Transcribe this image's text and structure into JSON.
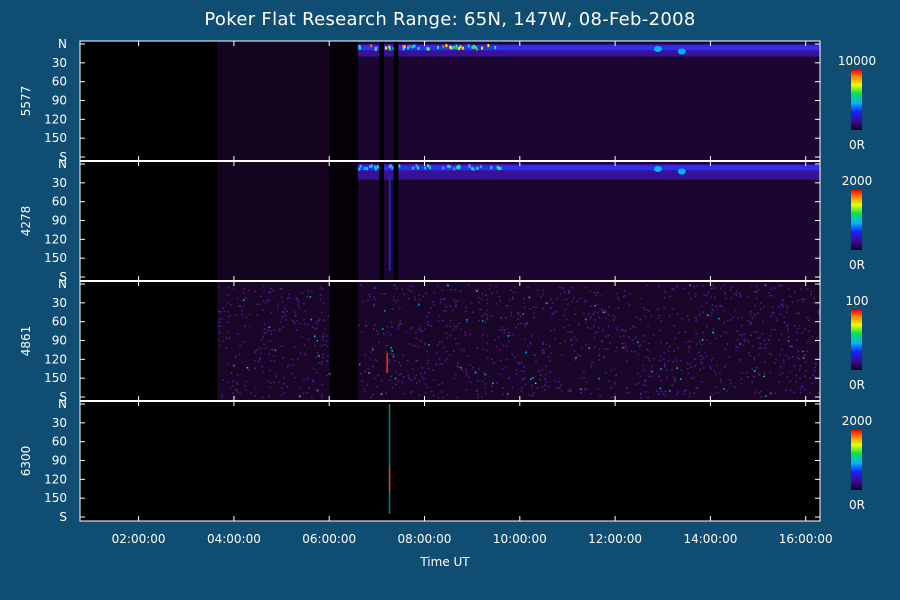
{
  "title": "Poker Flat Research Range: 65N, 147W, 08-Feb-2008",
  "xlabel": "Time UT",
  "chart_data": {
    "type": "heatmap",
    "title": "Poker Flat Research Range: 65N, 147W, 08-Feb-2008",
    "xlabel": "Time UT",
    "x_ticks": [
      "02:00:00",
      "04:00:00",
      "06:00:00",
      "08:00:00",
      "10:00:00",
      "12:00:00",
      "14:00:00",
      "16:00:00"
    ],
    "x_range_hours": [
      0.77,
      16.3
    ],
    "y_ticks": [
      "N",
      "30",
      "60",
      "90",
      "120",
      "150",
      "S"
    ],
    "y_range_deg": [
      0,
      180
    ],
    "panels": [
      {
        "name": "5577",
        "colorbar_max": 10000,
        "colorbar_max_label": "10000",
        "colorbar_min_label": "0R",
        "dark_until_h": 3.65,
        "gap_h": [
          6.0,
          6.6
        ],
        "active_from_h": 6.6,
        "band_deg": [
          0,
          20
        ],
        "band_level": "high"
      },
      {
        "name": "4278",
        "colorbar_max": 2000,
        "colorbar_max_label": "2000",
        "colorbar_min_label": "0R",
        "dark_until_h": 3.65,
        "gap_h": [
          6.0,
          6.6
        ],
        "active_from_h": 6.6,
        "band_deg": [
          0,
          25
        ],
        "band_level": "medium"
      },
      {
        "name": "4861",
        "colorbar_max": 100,
        "colorbar_max_label": "100",
        "colorbar_min_label": "0R",
        "dark_until_h": 3.65,
        "gap_h": [
          6.0,
          6.6
        ],
        "active_from_h": 3.65,
        "band_deg": [
          0,
          180
        ],
        "band_level": "noise"
      },
      {
        "name": "6300",
        "colorbar_max": 2000,
        "colorbar_max_label": "2000",
        "colorbar_min_label": "0R",
        "dark_until_h": 16.3,
        "gap_h": [
          6.0,
          6.6
        ],
        "active_from_h": 16.3,
        "band_deg": [
          0,
          0
        ],
        "band_level": "none"
      }
    ]
  }
}
